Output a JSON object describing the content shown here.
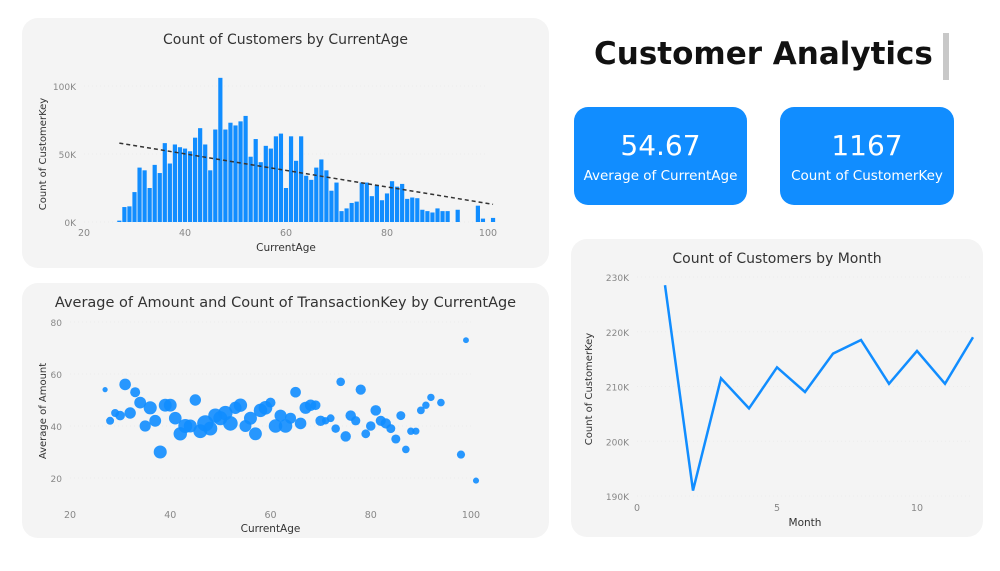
{
  "header": {
    "title": "Customer Analytics"
  },
  "kpis": [
    {
      "value": "54.67",
      "label": "Average of CurrentAge"
    },
    {
      "value": "1167",
      "label": "Count of CustomerKey"
    }
  ],
  "colors": {
    "accent": "#118DFF",
    "card": "#f4f4f4",
    "trend": "#333333"
  },
  "chart_data": [
    {
      "type": "bar",
      "title": "Count of Customers by CurrentAge",
      "xlabel": "CurrentAge",
      "ylabel": "Count of CustomerKey",
      "xlim": [
        20,
        102
      ],
      "ylim": [
        0,
        105000
      ],
      "xticks": [
        20,
        40,
        60,
        80,
        100
      ],
      "yticks": [
        {
          "v": 0,
          "label": "0K"
        },
        {
          "v": 50000,
          "label": "50K"
        },
        {
          "v": 100000,
          "label": "100K"
        }
      ],
      "trendline": {
        "style": "dashed",
        "from": [
          27,
          58000
        ],
        "to": [
          101,
          13000
        ]
      },
      "x": [
        27,
        28,
        29,
        30,
        31,
        32,
        33,
        34,
        35,
        36,
        37,
        38,
        39,
        40,
        41,
        42,
        43,
        44,
        45,
        46,
        47,
        48,
        49,
        50,
        51,
        52,
        53,
        54,
        55,
        56,
        57,
        58,
        59,
        60,
        61,
        62,
        63,
        64,
        65,
        66,
        67,
        68,
        69,
        70,
        71,
        72,
        73,
        74,
        75,
        76,
        77,
        78,
        79,
        80,
        81,
        82,
        83,
        84,
        85,
        86,
        87,
        88,
        89,
        90,
        91,
        92,
        94,
        98,
        99,
        101
      ],
      "values": [
        1000,
        11000,
        11500,
        22000,
        40000,
        38000,
        25000,
        42000,
        36000,
        58000,
        43000,
        57000,
        55000,
        54000,
        52000,
        62000,
        69000,
        57000,
        38000,
        68000,
        106000,
        68000,
        73000,
        71000,
        74000,
        78000,
        48000,
        61000,
        44000,
        56000,
        54000,
        63000,
        65000,
        25000,
        63000,
        45000,
        63000,
        34000,
        31000,
        40000,
        46000,
        38000,
        23000,
        29000,
        8000,
        10000,
        14000,
        15000,
        29000,
        29000,
        19000,
        27000,
        16000,
        21000,
        30000,
        26000,
        28000,
        17000,
        18000,
        17500,
        9000,
        8000,
        7000,
        10000,
        8000,
        8000,
        9000,
        12000,
        2500,
        3000
      ]
    },
    {
      "type": "scatter",
      "title": "Average of Amount and Count of TransactionKey by CurrentAge",
      "xlabel": "CurrentAge",
      "ylabel": "Average of Amount",
      "xlim": [
        20,
        100
      ],
      "ylim": [
        20,
        80
      ],
      "xticks": [
        20,
        40,
        60,
        80,
        100
      ],
      "yticks": [
        20,
        40,
        60,
        80
      ],
      "bubble_size": "Count of TransactionKey",
      "points": [
        [
          27,
          54,
          1
        ],
        [
          28,
          42,
          11
        ],
        [
          29,
          45,
          11
        ],
        [
          30,
          44,
          22
        ],
        [
          31,
          56,
          40
        ],
        [
          32,
          45,
          38
        ],
        [
          33,
          53,
          25
        ],
        [
          34,
          49,
          42
        ],
        [
          35,
          40,
          36
        ],
        [
          36,
          47,
          58
        ],
        [
          37,
          42,
          43
        ],
        [
          38,
          30,
          57
        ],
        [
          39,
          48,
          55
        ],
        [
          40,
          48,
          54
        ],
        [
          41,
          43,
          52
        ],
        [
          42,
          37,
          62
        ],
        [
          43,
          40,
          69
        ],
        [
          44,
          40,
          57
        ],
        [
          45,
          50,
          38
        ],
        [
          46,
          38,
          68
        ],
        [
          47,
          41,
          106
        ],
        [
          48,
          39,
          68
        ],
        [
          49,
          44,
          73
        ],
        [
          50,
          43,
          71
        ],
        [
          51,
          45,
          74
        ],
        [
          52,
          41,
          78
        ],
        [
          53,
          47,
          48
        ],
        [
          54,
          48,
          61
        ],
        [
          55,
          40,
          44
        ],
        [
          56,
          43,
          56
        ],
        [
          57,
          37,
          54
        ],
        [
          58,
          46,
          63
        ],
        [
          59,
          47,
          65
        ],
        [
          60,
          49,
          25
        ],
        [
          61,
          40,
          63
        ],
        [
          62,
          44,
          45
        ],
        [
          63,
          40,
          63
        ],
        [
          64,
          43,
          34
        ],
        [
          65,
          53,
          31
        ],
        [
          66,
          41,
          40
        ],
        [
          67,
          47,
          46
        ],
        [
          68,
          48,
          38
        ],
        [
          69,
          48,
          23
        ],
        [
          70,
          42,
          29
        ],
        [
          71,
          42,
          8
        ],
        [
          72,
          43,
          10
        ],
        [
          73,
          39,
          14
        ],
        [
          74,
          57,
          15
        ],
        [
          75,
          36,
          29
        ],
        [
          76,
          44,
          29
        ],
        [
          77,
          42,
          19
        ],
        [
          78,
          54,
          27
        ],
        [
          79,
          37,
          16
        ],
        [
          80,
          40,
          21
        ],
        [
          81,
          46,
          30
        ],
        [
          82,
          42,
          26
        ],
        [
          83,
          41,
          28
        ],
        [
          84,
          39,
          17
        ],
        [
          85,
          35,
          18
        ],
        [
          86,
          44,
          17
        ],
        [
          87,
          31,
          9
        ],
        [
          88,
          38,
          8
        ],
        [
          89,
          38,
          7
        ],
        [
          90,
          46,
          10
        ],
        [
          91,
          48,
          8
        ],
        [
          92,
          51,
          8
        ],
        [
          94,
          49,
          9
        ],
        [
          98,
          29,
          12
        ],
        [
          99,
          73,
          2.5
        ],
        [
          101,
          19,
          3
        ]
      ]
    },
    {
      "type": "line",
      "title": "Count of Customers by Month",
      "xlabel": "Month",
      "ylabel": "Count of CustomerKey",
      "xlim": [
        0,
        12
      ],
      "ylim": [
        190000,
        230000
      ],
      "xticks": [
        0,
        5,
        10
      ],
      "yticks": [
        {
          "v": 190000,
          "label": "190K"
        },
        {
          "v": 200000,
          "label": "200K"
        },
        {
          "v": 210000,
          "label": "210K"
        },
        {
          "v": 220000,
          "label": "220K"
        },
        {
          "v": 230000,
          "label": "230K"
        }
      ],
      "x": [
        1,
        2,
        3,
        4,
        5,
        6,
        7,
        8,
        9,
        10,
        11,
        12
      ],
      "values": [
        228500,
        191000,
        211500,
        206000,
        213500,
        209000,
        216000,
        218500,
        210500,
        216500,
        210500,
        219000
      ]
    }
  ]
}
